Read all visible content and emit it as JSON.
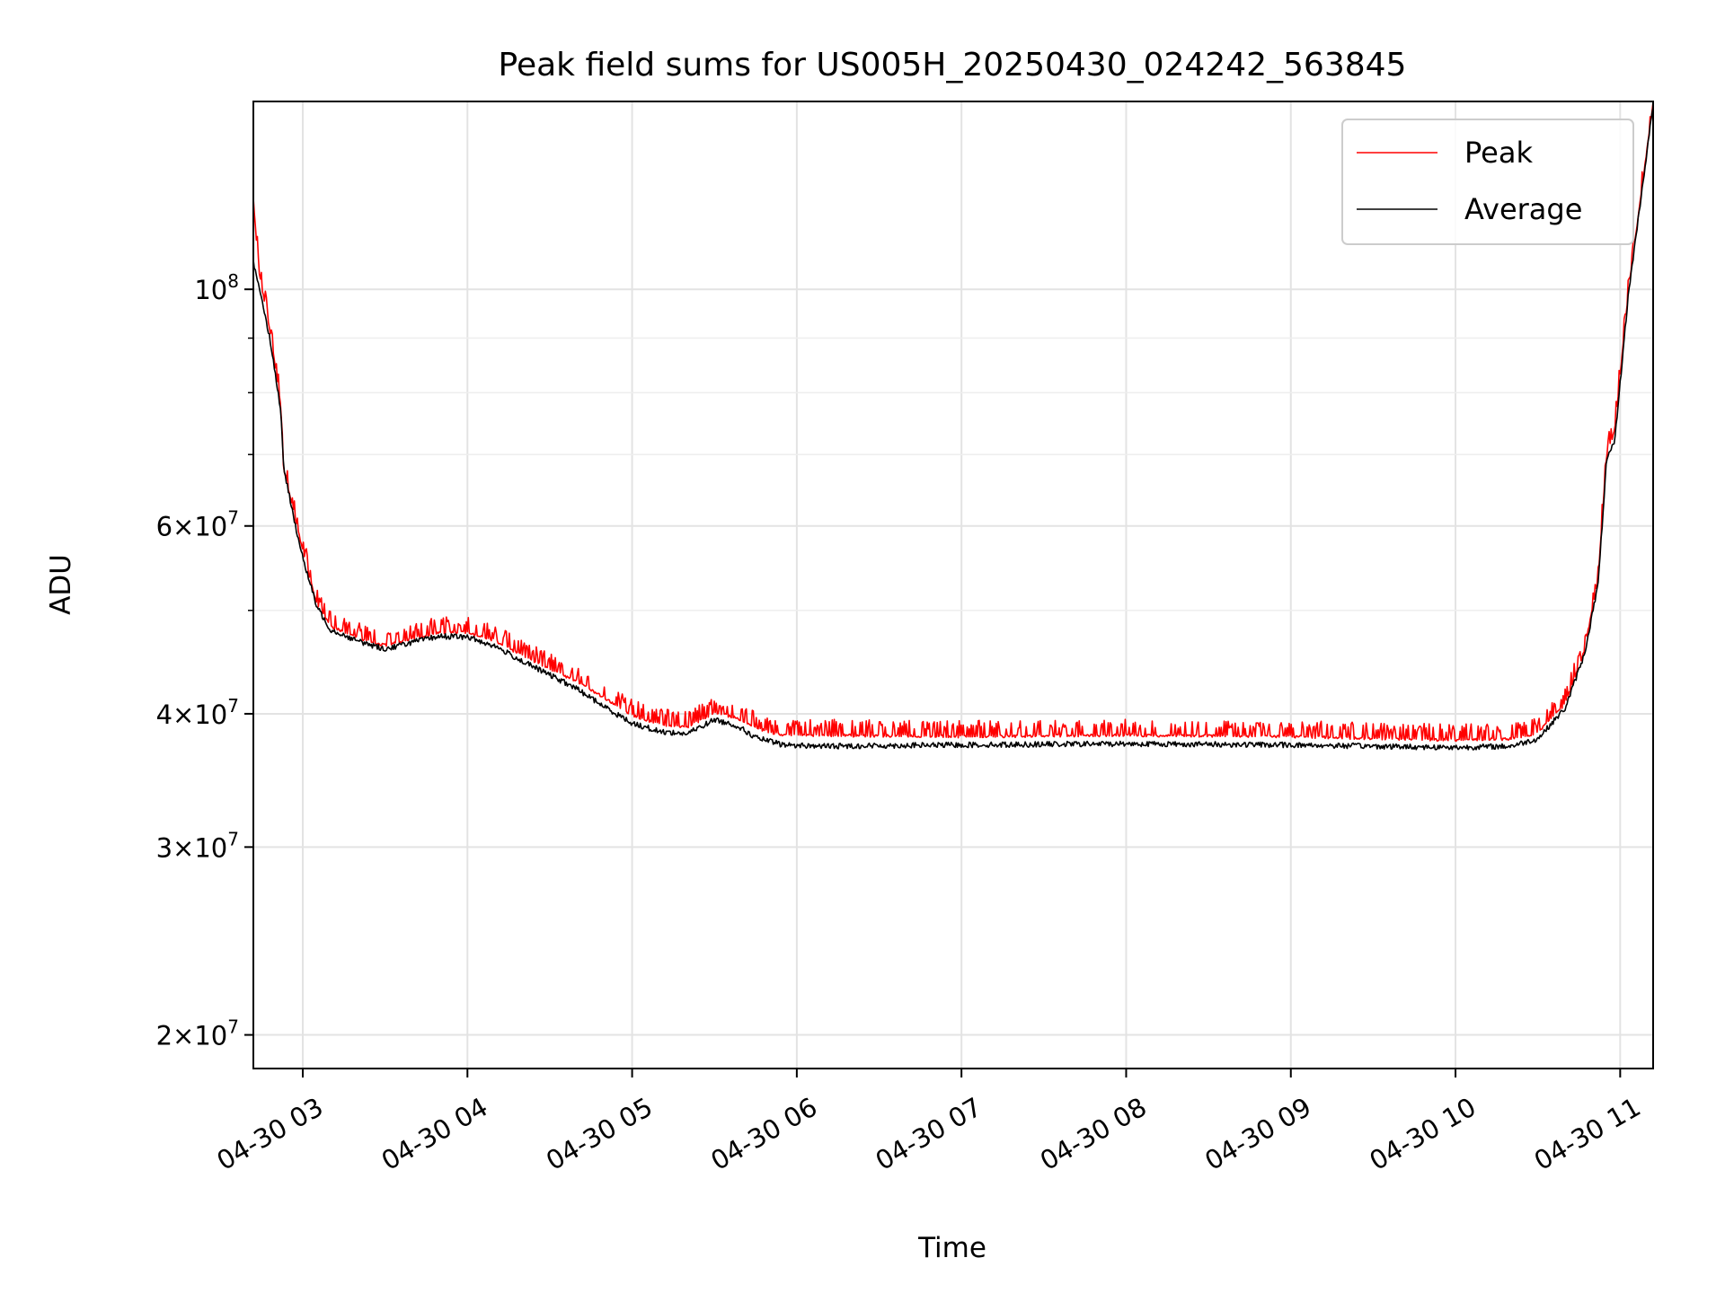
{
  "chart_data": {
    "type": "line",
    "title": "Peak field sums for US005H_20250430_024242_563845",
    "xlabel": "Time",
    "ylabel": "ADU",
    "y_scale": "log",
    "xlim": [
      "2025-04-30 02:42",
      "2025-04-30 11:12"
    ],
    "ylim": [
      18600000,
      150000000
    ],
    "grid": true,
    "legend_position": "top-right",
    "x_ticks": [
      {
        "time": "2025-04-30 03:00",
        "label": "04-30 03"
      },
      {
        "time": "2025-04-30 04:00",
        "label": "04-30 04"
      },
      {
        "time": "2025-04-30 05:00",
        "label": "04-30 05"
      },
      {
        "time": "2025-04-30 06:00",
        "label": "04-30 06"
      },
      {
        "time": "2025-04-30 07:00",
        "label": "04-30 07"
      },
      {
        "time": "2025-04-30 08:00",
        "label": "04-30 08"
      },
      {
        "time": "2025-04-30 09:00",
        "label": "04-30 09"
      },
      {
        "time": "2025-04-30 10:00",
        "label": "04-30 10"
      },
      {
        "time": "2025-04-30 11:00",
        "label": "04-30 11"
      }
    ],
    "y_ticks": [
      {
        "value": 20000000,
        "mantissa": "2",
        "exponent": "7"
      },
      {
        "value": 30000000,
        "mantissa": "3",
        "exponent": "7"
      },
      {
        "value": 40000000,
        "mantissa": "4",
        "exponent": "7"
      },
      {
        "value": 60000000,
        "mantissa": "6",
        "exponent": "7"
      },
      {
        "value": 100000000,
        "mantissa": "",
        "exponent": "8"
      }
    ],
    "y_minor_ticks": [
      50000000,
      70000000,
      80000000,
      90000000
    ],
    "series": [
      {
        "name": "Peak",
        "color": "#ff0000",
        "noise": "spiky",
        "points": [
          [
            "2025-04-30 02:42",
            122000000
          ],
          [
            "2025-04-30 02:44",
            104000000
          ],
          [
            "2025-04-30 02:48",
            92000000
          ],
          [
            "2025-04-30 02:52",
            78000000
          ],
          [
            "2025-04-30 02:53",
            68000000
          ],
          [
            "2025-04-30 02:58",
            60000000
          ],
          [
            "2025-04-30 03:00",
            57000000
          ],
          [
            "2025-04-30 03:05",
            51000000
          ],
          [
            "2025-04-30 03:10",
            48500000
          ],
          [
            "2025-04-30 03:20",
            47200000
          ],
          [
            "2025-04-30 03:30",
            46500000
          ],
          [
            "2025-04-30 03:40",
            47200000
          ],
          [
            "2025-04-30 03:50",
            47800000
          ],
          [
            "2025-04-30 04:00",
            47800000
          ],
          [
            "2025-04-30 04:10",
            47000000
          ],
          [
            "2025-04-30 04:20",
            45500000
          ],
          [
            "2025-04-30 04:30",
            44200000
          ],
          [
            "2025-04-30 04:40",
            43000000
          ],
          [
            "2025-04-30 04:50",
            41500000
          ],
          [
            "2025-04-30 05:00",
            40000000
          ],
          [
            "2025-04-30 05:10",
            39200000
          ],
          [
            "2025-04-30 05:20",
            39000000
          ],
          [
            "2025-04-30 05:30",
            40200000
          ],
          [
            "2025-04-30 05:38",
            39800000
          ],
          [
            "2025-04-30 05:45",
            38900000
          ],
          [
            "2025-04-30 05:55",
            38300000
          ],
          [
            "2025-04-30 06:10",
            38300000
          ],
          [
            "2025-04-30 07:00",
            38200000
          ],
          [
            "2025-04-30 08:00",
            38300000
          ],
          [
            "2025-04-30 09:00",
            38200000
          ],
          [
            "2025-04-30 10:00",
            37900000
          ],
          [
            "2025-04-30 10:20",
            38000000
          ],
          [
            "2025-04-30 10:30",
            38500000
          ],
          [
            "2025-04-30 10:40",
            41000000
          ],
          [
            "2025-04-30 10:47",
            46000000
          ],
          [
            "2025-04-30 10:52",
            54000000
          ],
          [
            "2025-04-30 10:55",
            70000000
          ],
          [
            "2025-04-30 10:58",
            74000000
          ],
          [
            "2025-04-30 11:03",
            100000000
          ],
          [
            "2025-04-30 11:12",
            150000000
          ]
        ]
      },
      {
        "name": "Average",
        "color": "#000000",
        "noise": "fine",
        "points": [
          [
            "2025-04-30 02:42",
            106000000
          ],
          [
            "2025-04-30 02:44",
            101000000
          ],
          [
            "2025-04-30 02:48",
            90000000
          ],
          [
            "2025-04-30 02:52",
            77000000
          ],
          [
            "2025-04-30 02:53",
            68000000
          ],
          [
            "2025-04-30 02:58",
            59000000
          ],
          [
            "2025-04-30 03:00",
            56000000
          ],
          [
            "2025-04-30 03:05",
            50500000
          ],
          [
            "2025-04-30 03:10",
            48000000
          ],
          [
            "2025-04-30 03:20",
            46800000
          ],
          [
            "2025-04-30 03:30",
            46000000
          ],
          [
            "2025-04-30 03:40",
            46700000
          ],
          [
            "2025-04-30 03:50",
            47300000
          ],
          [
            "2025-04-30 04:00",
            47200000
          ],
          [
            "2025-04-30 04:10",
            46300000
          ],
          [
            "2025-04-30 04:20",
            44800000
          ],
          [
            "2025-04-30 04:30",
            43500000
          ],
          [
            "2025-04-30 04:40",
            42200000
          ],
          [
            "2025-04-30 04:50",
            40600000
          ],
          [
            "2025-04-30 05:00",
            39200000
          ],
          [
            "2025-04-30 05:10",
            38500000
          ],
          [
            "2025-04-30 05:20",
            38300000
          ],
          [
            "2025-04-30 05:30",
            39500000
          ],
          [
            "2025-04-30 05:38",
            39000000
          ],
          [
            "2025-04-30 05:45",
            38000000
          ],
          [
            "2025-04-30 05:55",
            37400000
          ],
          [
            "2025-04-30 06:10",
            37300000
          ],
          [
            "2025-04-30 07:00",
            37400000
          ],
          [
            "2025-04-30 08:00",
            37500000
          ],
          [
            "2025-04-30 09:00",
            37400000
          ],
          [
            "2025-04-30 10:00",
            37200000
          ],
          [
            "2025-04-30 10:20",
            37300000
          ],
          [
            "2025-04-30 10:30",
            37900000
          ],
          [
            "2025-04-30 10:40",
            40500000
          ],
          [
            "2025-04-30 10:47",
            45500000
          ],
          [
            "2025-04-30 10:52",
            53000000
          ],
          [
            "2025-04-30 10:55",
            69000000
          ],
          [
            "2025-04-30 10:58",
            72000000
          ],
          [
            "2025-04-30 11:03",
            99000000
          ],
          [
            "2025-04-30 11:12",
            149000000
          ]
        ]
      }
    ]
  }
}
